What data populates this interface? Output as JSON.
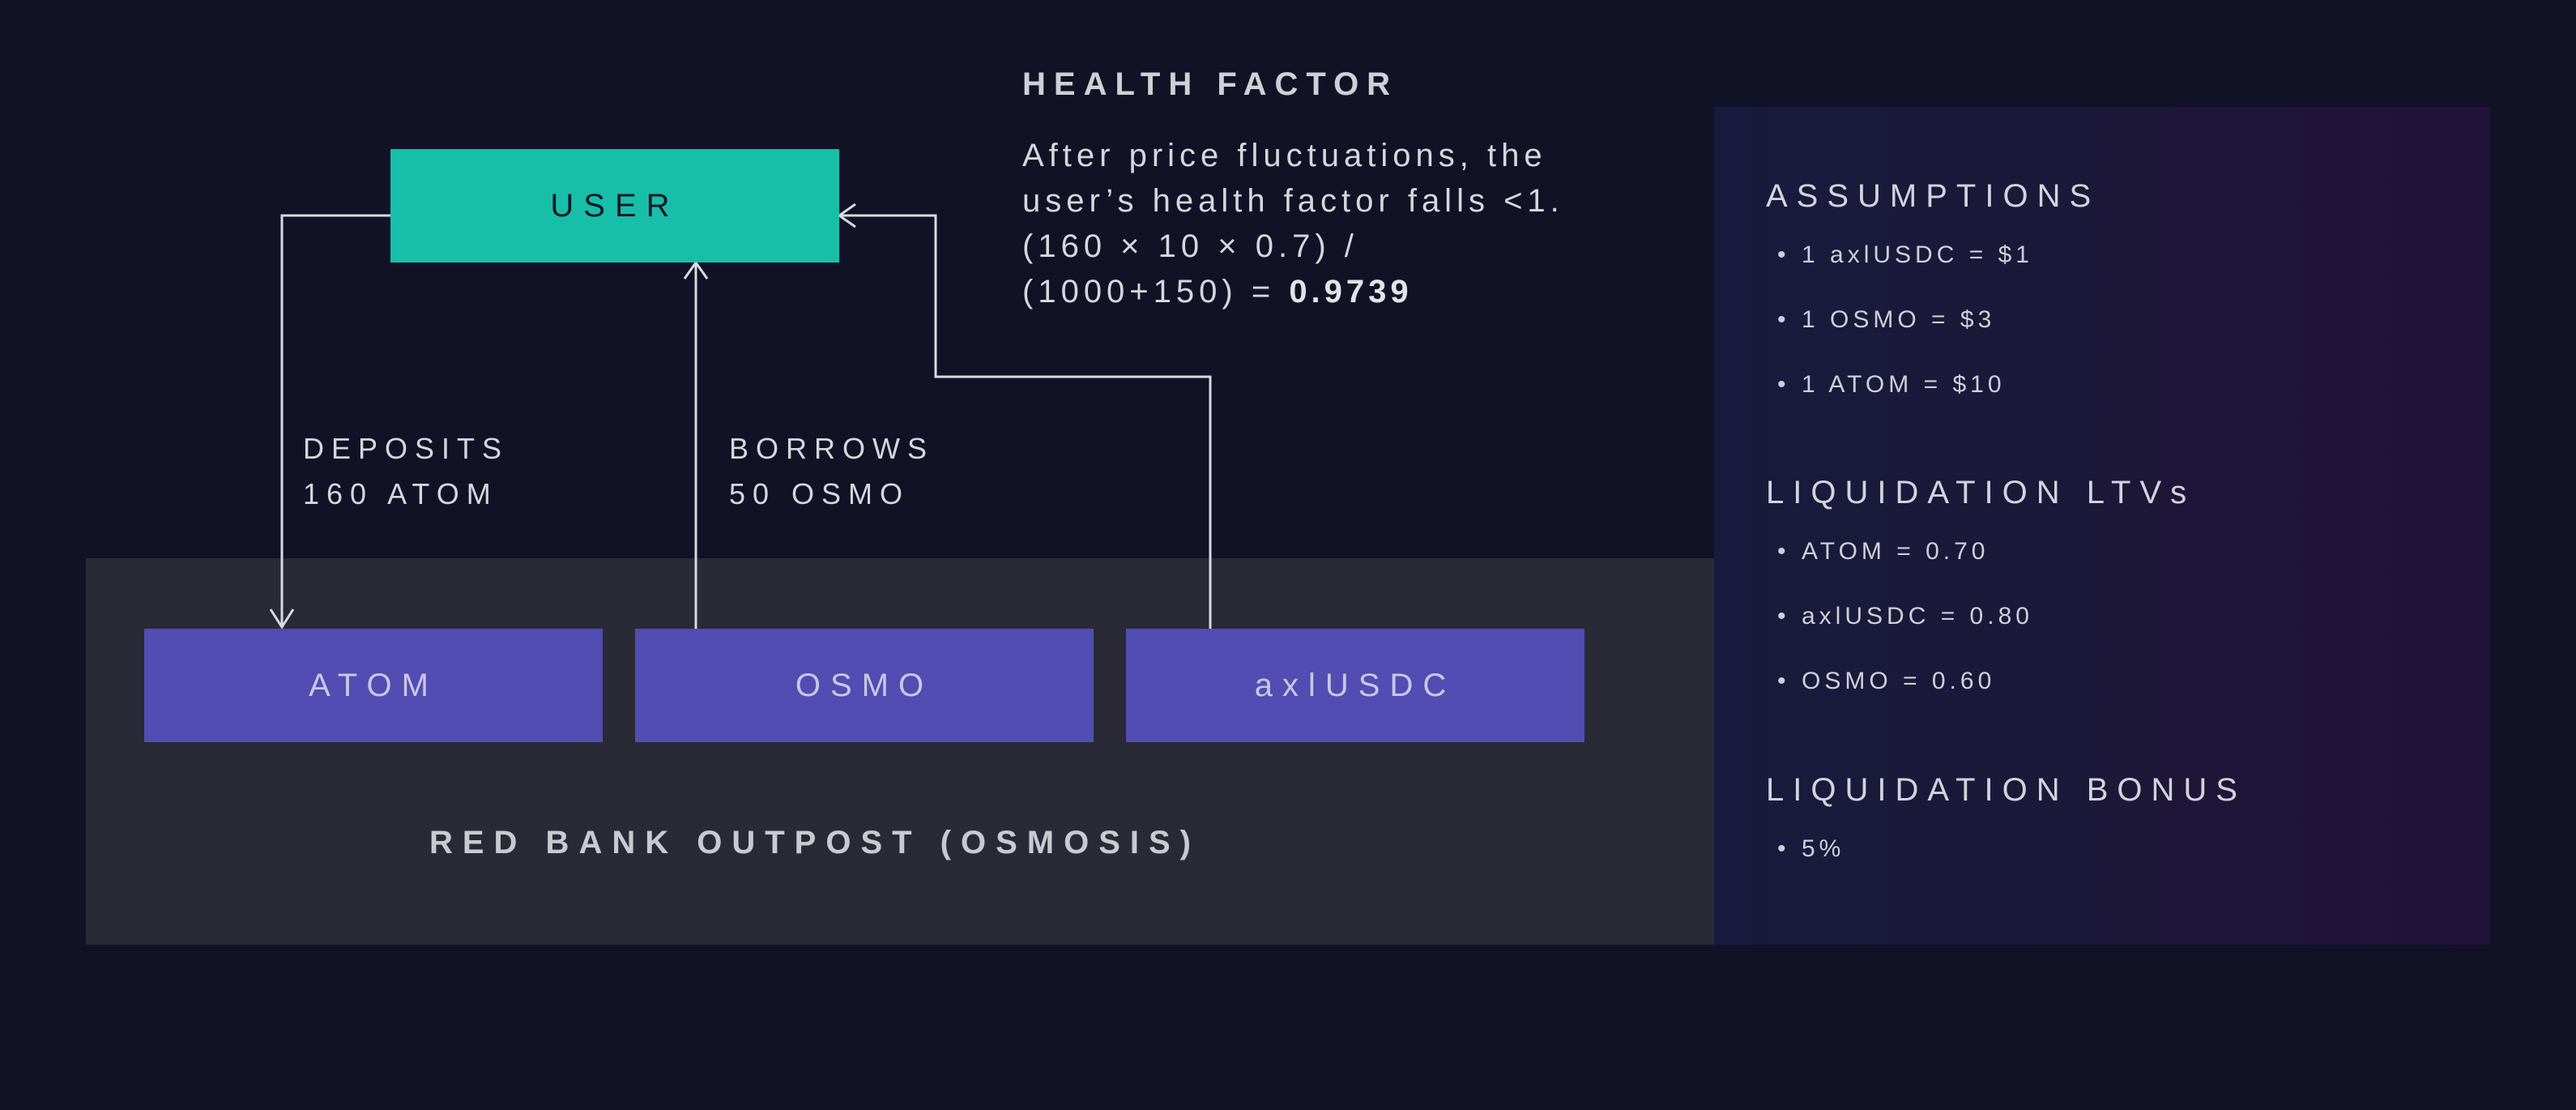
{
  "diagram": {
    "user_label": "USER",
    "deposits": {
      "line1": "DEPOSITS",
      "line2": "160 ATOM"
    },
    "borrows": {
      "line1": "BORROWS",
      "line2": "50 OSMO"
    },
    "assets": [
      "ATOM",
      "OSMO",
      "axlUSDC"
    ],
    "outpost_title": "RED BANK OUTPOST (OSMOSIS)"
  },
  "health_factor": {
    "title": "HEALTH FACTOR",
    "line1": "After price fluctuations,  the",
    "line2": "user’s health factor  falls <1.",
    "line3": "(160 × 10 × 0.7) /",
    "line4_prefix": "(1000+150) = ",
    "line4_value": "0.9739"
  },
  "panel": {
    "assumptions": {
      "heading": "ASSUMPTIONS",
      "items": [
        "1 axlUSDC = $1",
        "1 OSMO = $3",
        "1 ATOM = $10"
      ]
    },
    "liquidation_ltvs": {
      "heading": "LIQUIDATION LTVs",
      "items": [
        "ATOM = 0.70",
        "axlUSDC = 0.80",
        "OSMO = 0.60"
      ]
    },
    "liquidation_bonus": {
      "heading": "LIQUIDATION BONUS",
      "items": [
        "5%"
      ]
    }
  },
  "colors": {
    "background": "#111226",
    "user_box": "#17bfa9",
    "asset_box": "#534cb2",
    "outpost_bg": "#292a36",
    "connector": "#d9d9df"
  }
}
